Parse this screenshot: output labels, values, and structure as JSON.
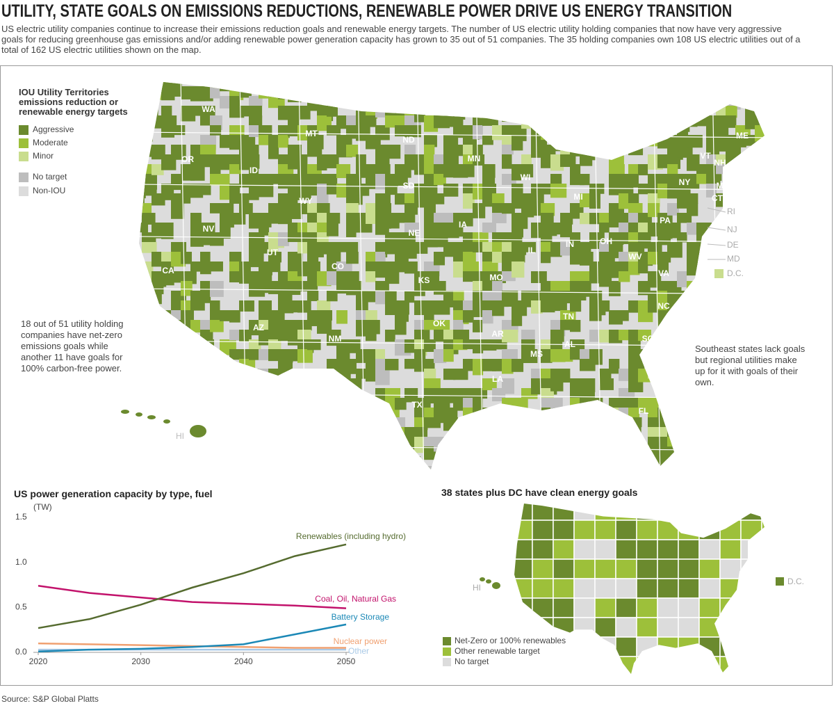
{
  "header": {
    "title": "UTILITY, STATE GOALS ON EMISSIONS REDUCTIONS, RENEWABLE POWER DRIVE US ENERGY TRANSITION",
    "subtitle": "US electric utility companies continue to increase their emissions reduction goals and renewable energy targets. The number of US electric utility holding companies that now have very aggressive goals for reducing greenhouse gas emissions and/or adding renewable power generation capacity has grown to 35 out of 51 companies. The 35 holding companies own 108 US electric utilities out of a total of 162 US electric utilities shown on the map."
  },
  "map": {
    "legend_title": "IOU Utility Territories emissions reduction or renewable energy targets",
    "legend": [
      {
        "label": "Aggressive",
        "color": "#6b8a2e"
      },
      {
        "label": "Moderate",
        "color": "#9dc03a"
      },
      {
        "label": "Minor",
        "color": "#c9dd8e"
      },
      {
        "label": "No target",
        "color": "#bdbdbd"
      },
      {
        "label": "Non-IOU",
        "color": "#dcdcdc"
      }
    ],
    "state_labels": [
      "WA",
      "OR",
      "MT",
      "ID",
      "WY",
      "NV",
      "UT",
      "CO",
      "CA",
      "AZ",
      "NM",
      "ND",
      "SD",
      "NE",
      "KS",
      "OK",
      "TX",
      "MN",
      "IA",
      "MO",
      "AR",
      "LA",
      "WI",
      "IL",
      "MS",
      "MI",
      "IN",
      "OH",
      "TN",
      "AL",
      "WV",
      "VA",
      "NC",
      "SC",
      "FL",
      "PA",
      "NY",
      "VT",
      "NH",
      "ME",
      "MA",
      "CT"
    ],
    "callout_labels": [
      "RI",
      "NJ",
      "DE",
      "MD"
    ],
    "dc_label": "D.C.",
    "hi_label": "HI",
    "annotations": [
      "18 out of 51 utility holding companies have net-zero emissions goals while another 11 have goals for 100% carbon-free power.",
      "Southeast states lack goals but regional utilities make up for it with goals of their own."
    ]
  },
  "chart_data": {
    "type": "line",
    "title": "US power generation capacity by type, fuel",
    "y_unit": "(TW)",
    "x": [
      2020,
      2025,
      2030,
      2035,
      2040,
      2045,
      2050
    ],
    "series": [
      {
        "name": "Renewables (including hydro)",
        "color": "#556b2f",
        "values": [
          0.27,
          0.37,
          0.53,
          0.72,
          0.88,
          1.07,
          1.2
        ]
      },
      {
        "name": "Coal, Oil, Natural Gas",
        "color": "#c2126b",
        "values": [
          0.74,
          0.66,
          0.61,
          0.56,
          0.54,
          0.52,
          0.49
        ]
      },
      {
        "name": "Battery Storage",
        "color": "#1b88b6",
        "values": [
          0.01,
          0.03,
          0.04,
          0.06,
          0.09,
          0.2,
          0.31
        ]
      },
      {
        "name": "Nuclear power",
        "color": "#f0a070",
        "values": [
          0.1,
          0.09,
          0.08,
          0.07,
          0.06,
          0.05,
          0.05
        ]
      },
      {
        "name": "Other",
        "color": "#a9c9e6",
        "values": [
          0.03,
          0.03,
          0.03,
          0.03,
          0.03,
          0.03,
          0.03
        ]
      }
    ],
    "xlim": [
      2020,
      2050
    ],
    "xticks": [
      2020,
      2030,
      2040,
      2050
    ],
    "ylim": [
      0,
      1.5
    ],
    "yticks": [
      {
        "value": 0,
        "label": "0.0"
      },
      0.5,
      {
        "value": 1,
        "label": "1.0"
      },
      1.5
    ],
    "grid": false
  },
  "clean_energy_map": {
    "title": "38 states plus DC have clean energy goals",
    "legend": [
      {
        "label": "Net-Zero or 100% renewables",
        "color": "#6b8a2e"
      },
      {
        "label": "Other renewable target",
        "color": "#9dc03a"
      },
      {
        "label": "No target",
        "color": "#dcdcdc"
      }
    ],
    "dc_label": "D.C.",
    "hi_label": "HI"
  },
  "source": "Source: S&P Global Platts"
}
